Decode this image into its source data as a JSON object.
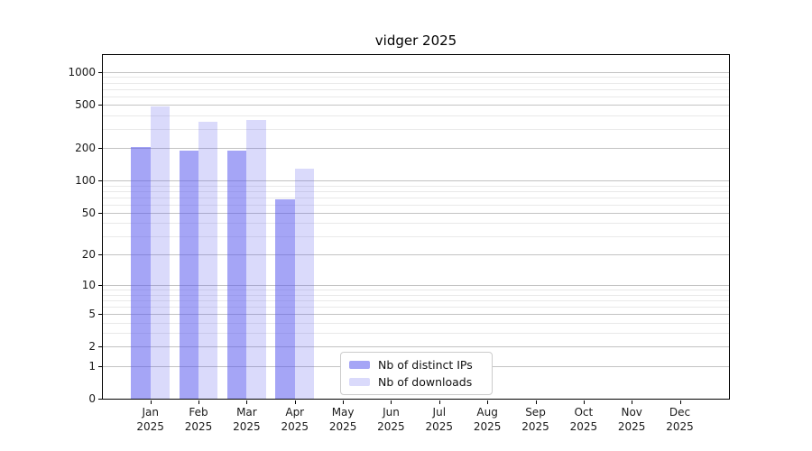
{
  "chart_data": {
    "type": "bar",
    "title": "vidger 2025",
    "scale": "log10(1+y)",
    "ylim": [
      0,
      1436
    ],
    "grid": "on",
    "legend_position": "inside-bottom-left-of-center",
    "yticks": [
      0,
      1,
      2,
      5,
      10,
      20,
      50,
      100,
      200,
      500,
      1000
    ],
    "y_gridlines_minor": [
      3,
      4,
      6,
      7,
      8,
      9,
      30,
      40,
      60,
      70,
      80,
      90,
      300,
      400,
      600,
      700,
      800,
      900
    ],
    "categories": [
      {
        "month": "Jan",
        "year": "2025"
      },
      {
        "month": "Feb",
        "year": "2025"
      },
      {
        "month": "Mar",
        "year": "2025"
      },
      {
        "month": "Apr",
        "year": "2025"
      },
      {
        "month": "May",
        "year": "2025"
      },
      {
        "month": "Jun",
        "year": "2025"
      },
      {
        "month": "Jul",
        "year": "2025"
      },
      {
        "month": "Aug",
        "year": "2025"
      },
      {
        "month": "Sep",
        "year": "2025"
      },
      {
        "month": "Oct",
        "year": "2025"
      },
      {
        "month": "Nov",
        "year": "2025"
      },
      {
        "month": "Dec",
        "year": "2025"
      }
    ],
    "series": [
      {
        "name": "Nb of distinct IPs",
        "color": "#a5a5f6",
        "fill": "rgba(85,85,238,0.53)",
        "values": [
          205,
          189,
          189,
          67,
          0,
          0,
          0,
          0,
          0,
          0,
          0,
          0
        ]
      },
      {
        "name": "Nb of downloads",
        "color": "#dadafb",
        "fill": "rgba(85,85,238,0.22)",
        "values": [
          479,
          348,
          361,
          130,
          0,
          0,
          0,
          0,
          0,
          0,
          0,
          0
        ]
      }
    ],
    "colors": {
      "axis": "#000000",
      "grid_major": "#c3c3c3",
      "grid_minor": "#e9e9e9",
      "text": "#1a1a1a",
      "legend_border": "#cccccc"
    }
  }
}
